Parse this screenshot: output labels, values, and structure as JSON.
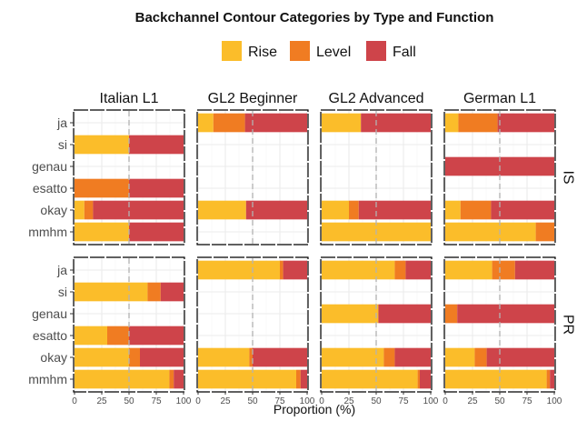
{
  "chart_data": {
    "type": "bar",
    "orientation": "horizontal",
    "stacked": true,
    "title": "Backchannel Contour Categories by Type and Function",
    "xlabel": "Proportion (%)",
    "ylabel": "",
    "xlim": [
      0,
      100
    ],
    "xticks": [
      "0",
      "25",
      "50",
      "75",
      "100"
    ],
    "reference_line": 50,
    "grid": true,
    "legend": {
      "position": "top",
      "entries": [
        {
          "name": "Rise",
          "color": "#FBBD2A"
        },
        {
          "name": "Level",
          "color": "#F07C22"
        },
        {
          "name": "Fall",
          "color": "#CE444A"
        }
      ]
    },
    "categories": [
      "ja",
      "si",
      "genau",
      "esatto",
      "okay",
      "mmhm"
    ],
    "columns": [
      "Italian L1",
      "GL2 Beginner",
      "GL2 Advanced",
      "German L1"
    ],
    "rows": [
      "IS",
      "PR"
    ],
    "panels": [
      {
        "row": "IS",
        "column": "Italian L1",
        "bars": [
          {
            "category": "si",
            "Rise": 50,
            "Level": 0,
            "Fall": 50
          },
          {
            "category": "esatto",
            "Rise": 0,
            "Level": 50,
            "Fall": 50
          },
          {
            "category": "okay",
            "Rise": 9,
            "Level": 8,
            "Fall": 83
          },
          {
            "category": "mmhm",
            "Rise": 50,
            "Level": 0,
            "Fall": 50
          }
        ]
      },
      {
        "row": "IS",
        "column": "GL2 Beginner",
        "bars": [
          {
            "category": "ja",
            "Rise": 14,
            "Level": 29,
            "Fall": 57
          },
          {
            "category": "okay",
            "Rise": 44,
            "Level": 0,
            "Fall": 56
          }
        ]
      },
      {
        "row": "IS",
        "column": "GL2 Advanced",
        "bars": [
          {
            "category": "ja",
            "Rise": 36,
            "Level": 0,
            "Fall": 64
          },
          {
            "category": "okay",
            "Rise": 25,
            "Level": 9,
            "Fall": 66
          },
          {
            "category": "mmhm",
            "Rise": 100,
            "Level": 0,
            "Fall": 0
          }
        ]
      },
      {
        "row": "IS",
        "column": "German L1",
        "bars": [
          {
            "category": "ja",
            "Rise": 12,
            "Level": 36,
            "Fall": 52
          },
          {
            "category": "genau",
            "Rise": 0,
            "Level": 0,
            "Fall": 100
          },
          {
            "category": "okay",
            "Rise": 14,
            "Level": 28,
            "Fall": 58
          },
          {
            "category": "mmhm",
            "Rise": 83,
            "Level": 17,
            "Fall": 0
          }
        ]
      },
      {
        "row": "PR",
        "column": "Italian L1",
        "bars": [
          {
            "category": "si",
            "Rise": 67,
            "Level": 12,
            "Fall": 21
          },
          {
            "category": "esatto",
            "Rise": 30,
            "Level": 20,
            "Fall": 50
          },
          {
            "category": "okay",
            "Rise": 50,
            "Level": 10,
            "Fall": 40
          },
          {
            "category": "mmhm",
            "Rise": 87,
            "Level": 4,
            "Fall": 9
          }
        ]
      },
      {
        "row": "PR",
        "column": "GL2 Beginner",
        "bars": [
          {
            "category": "ja",
            "Rise": 75,
            "Level": 3,
            "Fall": 22
          },
          {
            "category": "okay",
            "Rise": 47,
            "Level": 3,
            "Fall": 50
          },
          {
            "category": "mmhm",
            "Rise": 90,
            "Level": 4,
            "Fall": 6
          }
        ]
      },
      {
        "row": "PR",
        "column": "GL2 Advanced",
        "bars": [
          {
            "category": "ja",
            "Rise": 67,
            "Level": 10,
            "Fall": 23
          },
          {
            "category": "genau",
            "Rise": 52,
            "Level": 0,
            "Fall": 48
          },
          {
            "category": "okay",
            "Rise": 57,
            "Level": 10,
            "Fall": 33
          },
          {
            "category": "mmhm",
            "Rise": 88,
            "Level": 2,
            "Fall": 10
          }
        ]
      },
      {
        "row": "PR",
        "column": "German L1",
        "bars": [
          {
            "category": "ja",
            "Rise": 43,
            "Level": 21,
            "Fall": 36
          },
          {
            "category": "genau",
            "Rise": 0,
            "Level": 11,
            "Fall": 89
          },
          {
            "category": "okay",
            "Rise": 27,
            "Level": 11,
            "Fall": 62
          },
          {
            "category": "mmhm",
            "Rise": 93,
            "Level": 3,
            "Fall": 4
          }
        ]
      }
    ]
  }
}
